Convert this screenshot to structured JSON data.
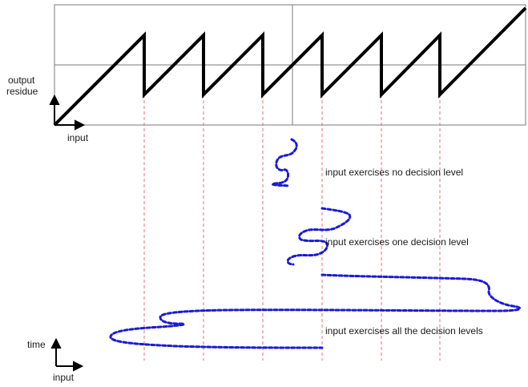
{
  "axes_top": {
    "y_label_line1": "output",
    "y_label_line2": "residue",
    "x_label": "input"
  },
  "axes_bottom": {
    "y_label": "time",
    "x_label": "input"
  },
  "annotations": {
    "no_level": "input exercises no decision level",
    "one_level": "input exercises one decision level",
    "all_levels": "input exercises all the decision levels"
  },
  "colors": {
    "sawtooth": "#000000",
    "trace": "#1a1ad6",
    "decision_line": "#e8707a",
    "frame": "#7a7a7a"
  }
}
